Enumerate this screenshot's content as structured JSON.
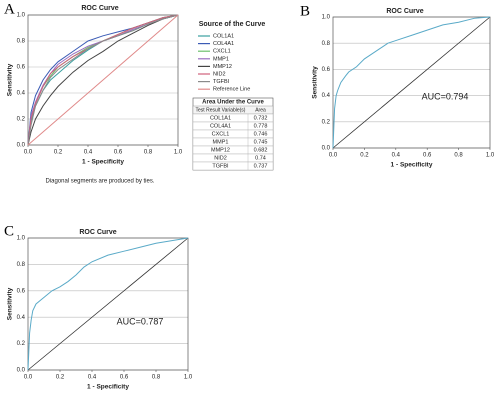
{
  "chart_data": [
    {
      "type": "line",
      "panel_label": "A",
      "title": "ROC Curve",
      "x_label": "1 - Specificity",
      "y_label": "Sensitivity",
      "x": [
        0,
        0.02,
        0.05,
        0.1,
        0.15,
        0.2,
        0.3,
        0.4,
        0.5,
        0.6,
        0.7,
        0.8,
        0.9,
        1
      ],
      "series": [
        {
          "name": "COL1A1",
          "color": "#3aa0a0",
          "values": [
            0,
            0.18,
            0.3,
            0.42,
            0.5,
            0.55,
            0.65,
            0.73,
            0.8,
            0.84,
            0.88,
            0.93,
            0.97,
            1
          ]
        },
        {
          "name": "COL4A1",
          "color": "#3b5bb5",
          "values": [
            0,
            0.25,
            0.38,
            0.5,
            0.58,
            0.64,
            0.72,
            0.8,
            0.84,
            0.87,
            0.9,
            0.94,
            0.98,
            1
          ]
        },
        {
          "name": "CXCL1",
          "color": "#6cbf6c",
          "values": [
            0,
            0.2,
            0.32,
            0.45,
            0.53,
            0.6,
            0.68,
            0.75,
            0.8,
            0.85,
            0.9,
            0.94,
            0.98,
            1
          ]
        },
        {
          "name": "MMP1",
          "color": "#9a6cc0",
          "values": [
            0,
            0.22,
            0.33,
            0.46,
            0.55,
            0.62,
            0.7,
            0.76,
            0.8,
            0.84,
            0.89,
            0.93,
            0.97,
            1
          ]
        },
        {
          "name": "MMP12",
          "color": "#444444",
          "values": [
            0,
            0.1,
            0.2,
            0.3,
            0.38,
            0.45,
            0.56,
            0.65,
            0.72,
            0.8,
            0.86,
            0.92,
            0.97,
            1
          ]
        },
        {
          "name": "NID2",
          "color": "#d0607a",
          "values": [
            0,
            0.2,
            0.32,
            0.45,
            0.55,
            0.6,
            0.68,
            0.74,
            0.8,
            0.85,
            0.9,
            0.94,
            0.98,
            1
          ]
        },
        {
          "name": "TGFBI",
          "color": "#8a8a8a",
          "values": [
            0,
            0.15,
            0.3,
            0.42,
            0.52,
            0.58,
            0.66,
            0.74,
            0.8,
            0.84,
            0.88,
            0.93,
            0.97,
            1
          ]
        },
        {
          "name": "Reference Line",
          "color": "#e08a8a",
          "values": [
            0,
            0.02,
            0.05,
            0.1,
            0.15,
            0.2,
            0.3,
            0.4,
            0.5,
            0.6,
            0.7,
            0.8,
            0.9,
            1
          ]
        }
      ],
      "legend_title": "Source of the Curve",
      "auc_table": {
        "title": "Area Under the Curve",
        "header": [
          "Test Result Variable(s)",
          "Area"
        ],
        "rows": [
          [
            "COL1A1",
            0.732
          ],
          [
            "COL4A1",
            0.778
          ],
          [
            "CXCL1",
            0.746
          ],
          [
            "MMP1",
            0.745
          ],
          [
            "MMP12",
            0.682
          ],
          [
            "NID2",
            0.74
          ],
          [
            "TGFBI",
            0.737
          ]
        ]
      },
      "note": "Diagonal segments are produced by ties.",
      "xlim": [
        0,
        1
      ],
      "ylim": [
        0,
        1
      ],
      "xticks": [
        {
          "value": 0,
          "label": "0.0"
        },
        0.2,
        0.4,
        0.6,
        0.8,
        {
          "value": 1,
          "label": "1.0"
        }
      ],
      "yticks": [
        {
          "value": 0,
          "label": "0.0"
        },
        0.2,
        0.4,
        0.6,
        0.8,
        {
          "value": 1,
          "label": "1.0"
        }
      ],
      "grid": true
    },
    {
      "type": "line",
      "panel_label": "B",
      "title": "ROC Curve",
      "x_label": "1 - Specificity",
      "y_label": "Sensitivity",
      "annotation": "AUC=0.794",
      "x": [
        0,
        0.01,
        0.02,
        0.03,
        0.05,
        0.08,
        0.1,
        0.15,
        0.2,
        0.25,
        0.3,
        0.35,
        0.4,
        0.5,
        0.6,
        0.7,
        0.8,
        0.9,
        1
      ],
      "series": [
        {
          "color": "#5aaac8",
          "values": [
            0,
            0.3,
            0.4,
            0.44,
            0.5,
            0.55,
            0.58,
            0.62,
            0.68,
            0.72,
            0.76,
            0.8,
            0.82,
            0.86,
            0.9,
            0.94,
            0.96,
            0.99,
            1
          ]
        }
      ],
      "xlim": [
        0,
        1
      ],
      "ylim": [
        0,
        1
      ],
      "xticks": [
        {
          "value": 0,
          "label": "0.0"
        },
        0.2,
        0.4,
        0.6,
        0.8,
        {
          "value": 1,
          "label": "1.0"
        }
      ],
      "yticks": [
        {
          "value": 0,
          "label": "0.0"
        },
        0.2,
        0.4,
        0.6,
        0.8,
        {
          "value": 1,
          "label": "1.0"
        }
      ],
      "grid": true
    },
    {
      "type": "line",
      "panel_label": "C",
      "title": "ROC Curve",
      "x_label": "1 - Specificity",
      "y_label": "Sensitivity",
      "annotation": "AUC=0.787",
      "x": [
        0,
        0.01,
        0.02,
        0.03,
        0.05,
        0.08,
        0.1,
        0.15,
        0.2,
        0.25,
        0.3,
        0.35,
        0.4,
        0.5,
        0.6,
        0.7,
        0.8,
        0.9,
        1
      ],
      "series": [
        {
          "color": "#5aaac8",
          "values": [
            0,
            0.28,
            0.38,
            0.45,
            0.5,
            0.53,
            0.55,
            0.6,
            0.63,
            0.67,
            0.72,
            0.78,
            0.82,
            0.87,
            0.9,
            0.93,
            0.96,
            0.98,
            1
          ]
        }
      ],
      "xlim": [
        0,
        1
      ],
      "ylim": [
        0,
        1
      ],
      "xticks": [
        {
          "value": 0,
          "label": "0.0"
        },
        0.2,
        0.4,
        0.6,
        0.8,
        {
          "value": 1,
          "label": "1.0"
        }
      ],
      "yticks": [
        {
          "value": 0,
          "label": "0.0"
        },
        0.2,
        0.4,
        0.6,
        0.8,
        {
          "value": 1,
          "label": "1.0"
        }
      ],
      "grid": true
    }
  ]
}
